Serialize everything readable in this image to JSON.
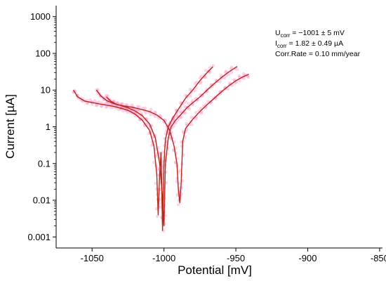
{
  "chart_data": {
    "type": "line",
    "xlabel": "Potential [mV]",
    "ylabel": "Current [µA]",
    "x_scale": "linear",
    "y_scale": "log",
    "xlim": [
      -1075,
      -848
    ],
    "ylim": [
      0.0005,
      2000
    ],
    "x_ticks": [
      -1050,
      -1000,
      -950,
      -900,
      -850
    ],
    "x_tick_labels": [
      "-1050",
      "-1000",
      "-950",
      "-900",
      "-850"
    ],
    "y_ticks": [
      0.001,
      0.01,
      0.1,
      1,
      10,
      100,
      1000
    ],
    "y_tick_labels": [
      "0.001",
      "0.01",
      "0.1",
      "1",
      "10",
      "100",
      "1000"
    ],
    "grid": false,
    "line_color": "#b22a1a",
    "scatter_color": "#ff80c0",
    "annotation": {
      "ucorr_sym": "U",
      "ucorr_sub": "corr",
      "ucorr_val": " = −1001 ± 5 mV",
      "icorr_sym": "I",
      "icorr_sub": "corr",
      "icorr_val": " = 1.82 ± 0.49 µA",
      "rate": "Corr.Rate = 0.10 mm/year"
    },
    "series": [
      {
        "x": [
          -1063,
          -1060,
          -1055,
          -1050,
          -1045,
          -1040,
          -1035,
          -1030,
          -1025,
          -1020,
          -1015,
          -1010,
          -1007,
          -1005,
          -1004,
          -1003,
          -1002,
          -1001,
          -1000,
          -999,
          -997,
          -994,
          -990,
          -985,
          -980,
          -975,
          -970,
          -966
        ],
        "y": [
          10,
          6.5,
          5,
          4.6,
          4.2,
          3.9,
          3.6,
          3.2,
          2.8,
          2.2,
          1.5,
          0.8,
          0.3,
          0.05,
          0.004,
          0.05,
          0.2,
          0.0015,
          0.1,
          0.45,
          1.0,
          1.7,
          3.0,
          6,
          10,
          18,
          30,
          43
        ]
      },
      {
        "x": [
          -1047,
          -1044,
          -1040,
          -1035,
          -1030,
          -1025,
          -1020,
          -1015,
          -1010,
          -1006,
          -1003,
          -1001,
          -1000,
          -999,
          -997,
          -995,
          -992,
          -988,
          -984,
          -980,
          -975,
          -970,
          -965,
          -960,
          -955,
          -949
        ],
        "y": [
          10,
          7,
          5.2,
          4.3,
          3.8,
          3.3,
          2.7,
          2.0,
          1.2,
          0.5,
          0.1,
          0.012,
          0.002,
          0.1,
          0.5,
          1.0,
          1.5,
          2.2,
          3.3,
          4.5,
          6.5,
          10,
          15,
          22,
          31,
          44
        ]
      },
      {
        "x": [
          -1040,
          -1037,
          -1033,
          -1028,
          -1022,
          -1016,
          -1010,
          -1005,
          -1000,
          -996,
          -993,
          -991,
          -990,
          -989,
          -988,
          -987,
          -985,
          -980,
          -975,
          -970,
          -965,
          -960,
          -955,
          -950,
          -945,
          -941
        ],
        "y": [
          6.5,
          5,
          4.1,
          3.7,
          3.4,
          3.0,
          2.6,
          2.1,
          1.5,
          0.8,
          0.3,
          0.1,
          0.02,
          0.0085,
          0.03,
          0.4,
          0.9,
          1.6,
          2.6,
          4.0,
          6.0,
          9.0,
          13,
          18,
          23,
          27
        ]
      }
    ]
  }
}
